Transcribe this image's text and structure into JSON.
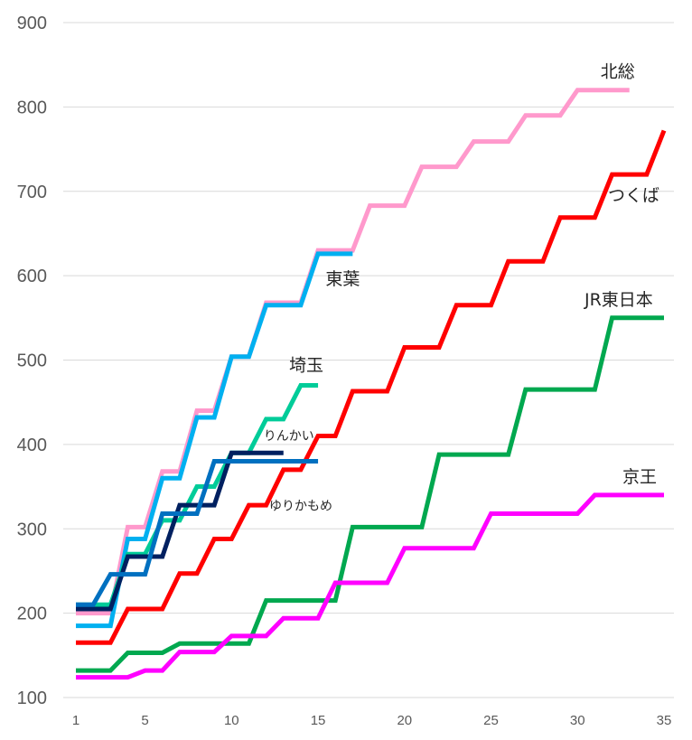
{
  "chart_data": {
    "type": "line",
    "title": "",
    "xlabel": "",
    "ylabel": "",
    "xlim": [
      1,
      35
    ],
    "ylim": [
      100,
      900
    ],
    "x_ticks": [
      1,
      5,
      10,
      15,
      20,
      25,
      30,
      35
    ],
    "y_ticks": [
      100,
      200,
      300,
      400,
      500,
      600,
      700,
      800,
      900
    ],
    "grid": true,
    "legend": "inline-labels",
    "series": [
      {
        "name": "北総",
        "color": "#ff99cc",
        "label_pos": "end",
        "values": [
          200,
          200,
          200,
          302,
          302,
          368,
          368,
          440,
          440,
          504,
          504,
          568,
          568,
          568,
          630,
          630,
          630,
          683,
          683,
          683,
          729,
          729,
          729,
          759,
          759,
          759,
          790,
          790,
          790,
          820,
          820,
          820,
          820
        ]
      },
      {
        "name": "つくば",
        "color": "#ff0000",
        "label_pos": "end",
        "values": [
          165,
          165,
          165,
          205,
          205,
          205,
          247,
          247,
          288,
          288,
          328,
          328,
          370,
          370,
          410,
          410,
          463,
          463,
          463,
          515,
          515,
          515,
          565,
          565,
          565,
          617,
          617,
          617,
          669,
          669,
          669,
          720,
          720,
          720,
          772
        ]
      },
      {
        "name": "JR東日本",
        "color": "#00a84f",
        "label_pos": "end",
        "values": [
          132,
          132,
          132,
          153,
          153,
          153,
          164,
          164,
          164,
          164,
          164,
          215,
          215,
          215,
          215,
          215,
          302,
          302,
          302,
          302,
          302,
          388,
          388,
          388,
          388,
          388,
          465,
          465,
          465,
          465,
          465,
          550,
          550,
          550,
          550
        ]
      },
      {
        "name": "京王",
        "color": "#ff00ff",
        "label_pos": "end",
        "values": [
          124,
          124,
          124,
          124,
          132,
          132,
          154,
          154,
          154,
          173,
          173,
          173,
          194,
          194,
          194,
          236,
          236,
          236,
          236,
          277,
          277,
          277,
          277,
          277,
          318,
          318,
          318,
          318,
          318,
          318,
          340,
          340,
          340,
          340,
          340
        ]
      },
      {
        "name": "東葉",
        "color": "#00b0f0",
        "label_pos": "end",
        "values": [
          185,
          185,
          185,
          288,
          288,
          360,
          360,
          432,
          432,
          504,
          504,
          565,
          565,
          565,
          626,
          626,
          626
        ]
      },
      {
        "name": "埼玉",
        "color": "#00cc99",
        "label_pos": "end",
        "values": [
          210,
          210,
          210,
          270,
          270,
          310,
          310,
          350,
          350,
          390,
          390,
          430,
          430,
          470,
          470
        ]
      },
      {
        "name": "りんかい",
        "color": "#002060",
        "label_pos": "end",
        "values": [
          205,
          205,
          205,
          267,
          267,
          267,
          328,
          328,
          328,
          390,
          390,
          390,
          390
        ]
      },
      {
        "name": "ゆりかもめ",
        "color": "#0070c0",
        "label_pos": "end",
        "values": [
          210,
          210,
          246,
          246,
          246,
          318,
          318,
          318,
          380,
          380,
          380,
          380,
          380,
          380,
          380
        ]
      }
    ]
  }
}
